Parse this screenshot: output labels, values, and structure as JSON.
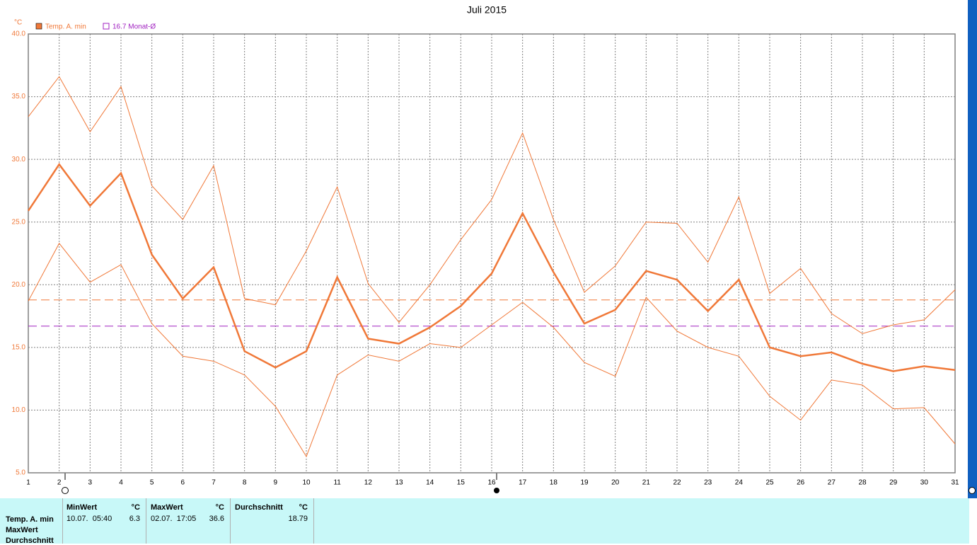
{
  "chart_data": {
    "type": "line",
    "title": "Juli 2015",
    "y_unit": "°C",
    "x": [
      1,
      2,
      3,
      4,
      5,
      6,
      7,
      8,
      9,
      10,
      11,
      12,
      13,
      14,
      15,
      16,
      17,
      18,
      19,
      20,
      21,
      22,
      23,
      24,
      25,
      26,
      27,
      28,
      29,
      30,
      31
    ],
    "xlim": [
      1,
      31
    ],
    "series": [
      {
        "name": "Temp. A. min",
        "color": "#f07838",
        "values": [
          25.9,
          29.6,
          26.3,
          28.9,
          22.4,
          18.9,
          21.4,
          14.7,
          13.4,
          14.7,
          20.6,
          15.7,
          15.3,
          16.6,
          18.3,
          20.9,
          25.7,
          21.0,
          16.9,
          18.0,
          21.1,
          20.4,
          17.9,
          20.4,
          15.0,
          14.3,
          14.6,
          13.7,
          13.1,
          13.5,
          13.2
        ],
        "high_values": [
          33.4,
          36.6,
          32.2,
          35.8,
          27.9,
          25.2,
          29.5,
          18.9,
          18.4,
          22.7,
          27.8,
          20.1,
          17.0,
          20.0,
          23.6,
          26.8,
          32.1,
          25.2,
          19.4,
          21.5,
          25.0,
          24.9,
          21.8,
          27.0,
          19.3,
          21.3,
          17.7,
          16.1,
          16.8,
          17.2,
          19.6
        ],
        "low_values": [
          18.7,
          23.3,
          20.2,
          21.6,
          16.9,
          14.3,
          13.9,
          12.8,
          10.3,
          6.3,
          12.8,
          14.4,
          13.9,
          15.3,
          15.0,
          16.8,
          18.6,
          16.6,
          13.8,
          12.7,
          19.0,
          16.3,
          15.0,
          14.3,
          11.1,
          9.2,
          12.4,
          12.0,
          10.1,
          10.2,
          7.3
        ],
        "mean_line": 18.79
      }
    ],
    "reference_line": {
      "value": 16.7,
      "label": "16.7 Monat-Ø",
      "color": "#a020c0"
    },
    "ylim": [
      5,
      40
    ],
    "yticks": [
      {
        "value": 5,
        "label": "5.0"
      },
      {
        "value": 10,
        "label": "10.0"
      },
      {
        "value": 15,
        "label": "15.0"
      },
      {
        "value": 20,
        "label": "20.0"
      },
      {
        "value": 25,
        "label": "25.0"
      },
      {
        "value": 30,
        "label": "30.0"
      },
      {
        "value": 35,
        "label": "35.0"
      },
      {
        "value": 40,
        "label": "40.0"
      }
    ],
    "grid": true
  },
  "table": {
    "row_labels": [
      "Temp. A. min",
      "MaxWert",
      "Durchschnitt"
    ],
    "columns": [
      {
        "header": "MinWert",
        "unit": "°C",
        "time": "10.07.  05:40",
        "value": "6.3"
      },
      {
        "header": "MaxWert",
        "unit": "°C",
        "time": "02.07.  17:05",
        "value": "36.6"
      },
      {
        "header": "Durchschnitt",
        "unit": "°C",
        "time": "",
        "value": "18.79"
      }
    ]
  }
}
